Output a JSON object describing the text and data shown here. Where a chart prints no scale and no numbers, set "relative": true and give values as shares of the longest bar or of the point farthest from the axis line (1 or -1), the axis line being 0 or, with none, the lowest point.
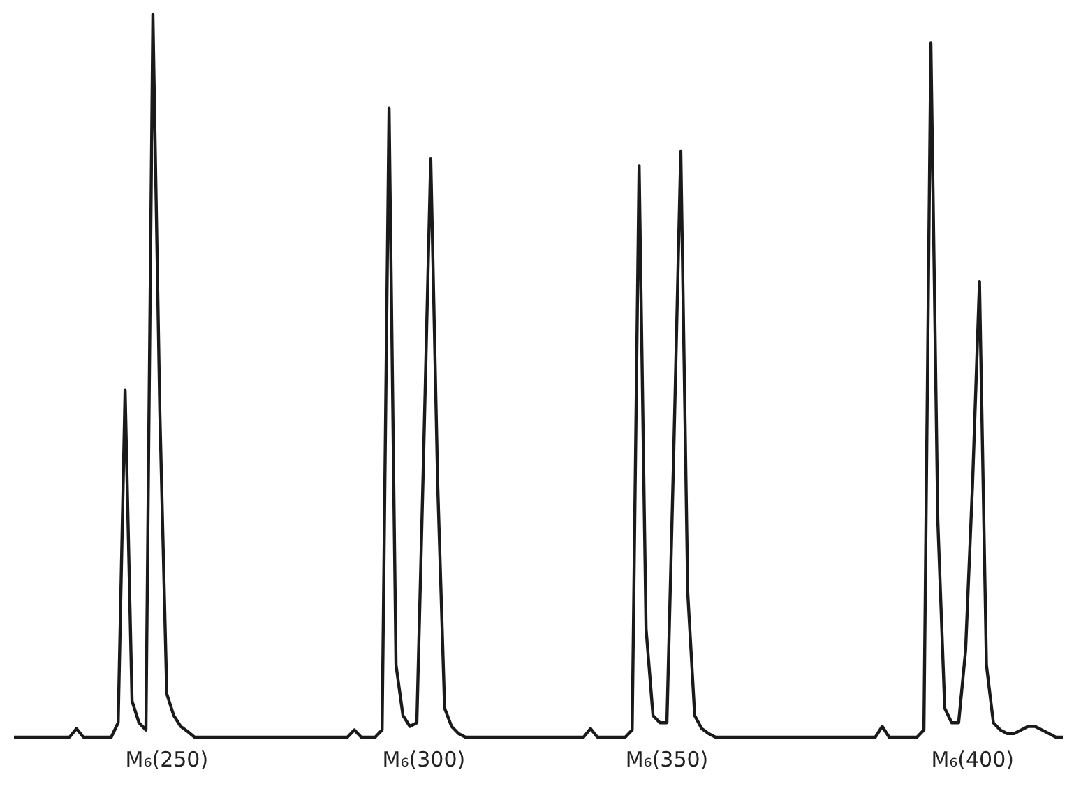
{
  "chart_data": {
    "type": "line",
    "relative": true,
    "marker": "none",
    "line_style": "solid",
    "grid": false,
    "legend": false,
    "tick_labels": "x",
    "categories": [
      null,
      null,
      null,
      null,
      null,
      null,
      null,
      null,
      null,
      null,
      null,
      null,
      null,
      null,
      null,
      null,
      null,
      null,
      null,
      null,
      null,
      null,
      "M₆(250)",
      null,
      null,
      null,
      null,
      null,
      null,
      null,
      null,
      null,
      null,
      null,
      null,
      null,
      null,
      null,
      null,
      null,
      null,
      null,
      null,
      null,
      null,
      null,
      null,
      null,
      null,
      null,
      null,
      null,
      null,
      null,
      null,
      null,
      null,
      null,
      null,
      "M₆(300)",
      null,
      null,
      null,
      null,
      null,
      null,
      null,
      null,
      null,
      null,
      null,
      null,
      null,
      null,
      null,
      null,
      null,
      null,
      null,
      null,
      null,
      null,
      null,
      null,
      null,
      null,
      null,
      null,
      null,
      null,
      null,
      null,
      null,
      null,
      "M₆(350)",
      null,
      null,
      null,
      null,
      null,
      null,
      null,
      null,
      null,
      null,
      null,
      null,
      null,
      null,
      null,
      null,
      null,
      null,
      null,
      null,
      null,
      null,
      null,
      null,
      null,
      null,
      null,
      null,
      null,
      null,
      null,
      null,
      null,
      null,
      null,
      null,
      null,
      null,
      null,
      null,
      null,
      null,
      null,
      "M₆(400)",
      null,
      null,
      null,
      null,
      null,
      null,
      null,
      null,
      null,
      null,
      null,
      null,
      null
    ],
    "series": [
      {
        "color": "#1a1a1a",
        "values": [
          0,
          0,
          0,
          0,
          0,
          0,
          0,
          0,
          0,
          0.012,
          0,
          0,
          0,
          0,
          0,
          0.02,
          0.48,
          0.05,
          0.02,
          0.01,
          1,
          0.45,
          0.06,
          0.03,
          0.015,
          0.008,
          0,
          0,
          0,
          0,
          0,
          0,
          0,
          0,
          0,
          0,
          0,
          0,
          0,
          0,
          0,
          0,
          0,
          0,
          0,
          0,
          0,
          0,
          0,
          0.01,
          0,
          0,
          0,
          0.01,
          0.87,
          0.1,
          0.03,
          0.015,
          0.02,
          0.4,
          0.8,
          0.35,
          0.04,
          0.015,
          0.005,
          0,
          0,
          0,
          0,
          0,
          0,
          0,
          0,
          0,
          0,
          0,
          0,
          0,
          0,
          0,
          0,
          0,
          0,
          0.012,
          0,
          0,
          0,
          0,
          0,
          0.01,
          0.79,
          0.15,
          0.03,
          0.02,
          0.02,
          0.4,
          0.81,
          0.2,
          0.03,
          0.012,
          0.005,
          0,
          0,
          0,
          0,
          0,
          0,
          0,
          0,
          0,
          0,
          0,
          0,
          0,
          0,
          0,
          0,
          0,
          0,
          0,
          0,
          0,
          0,
          0,
          0,
          0.015,
          0,
          0,
          0,
          0,
          0,
          0.01,
          0.96,
          0.3,
          0.04,
          0.02,
          0.02,
          0.12,
          0.35,
          0.63,
          0.1,
          0.02,
          0.01,
          0.005,
          0.005,
          0.01,
          0.015,
          0.015,
          0.01,
          0.005,
          0,
          0
        ]
      }
    ]
  }
}
